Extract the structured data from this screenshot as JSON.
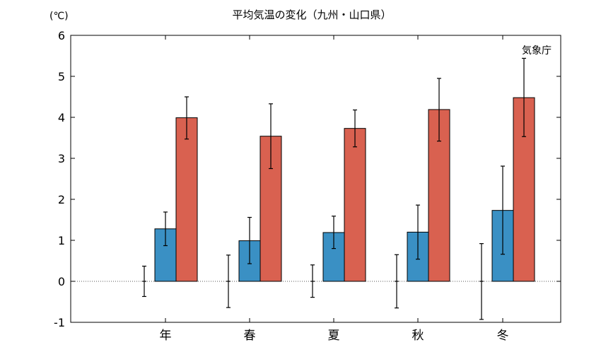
{
  "chart_data": {
    "type": "bar",
    "title": "平均気温の変化（九州・山口県）",
    "unit_label": "(℃)",
    "annotation": "気象庁",
    "categories": [
      "年",
      "春",
      "夏",
      "秋",
      "冬"
    ],
    "ylim": [
      -1,
      6
    ],
    "yticks": [
      "-1",
      "0",
      "1",
      "2",
      "3",
      "4",
      "5",
      "6"
    ],
    "ytick_values": [
      -1,
      0,
      1,
      2,
      3,
      4,
      5,
      6
    ],
    "zero_line": "dotted",
    "grid": false,
    "series": [
      {
        "values": [
          0,
          0,
          0,
          0,
          0
        ],
        "err_low": [
          -0.37,
          -0.64,
          -0.39,
          -0.65,
          -0.93
        ],
        "err_high": [
          0.37,
          0.64,
          0.4,
          0.65,
          0.92
        ],
        "color": "#000000"
      },
      {
        "values": [
          1.28,
          0.99,
          1.19,
          1.2,
          1.73
        ],
        "err_low": [
          0.87,
          0.43,
          0.8,
          0.54,
          0.66
        ],
        "err_high": [
          1.69,
          1.56,
          1.59,
          1.86,
          2.81
        ],
        "color": "#3a90c4"
      },
      {
        "values": [
          3.99,
          3.54,
          3.73,
          4.19,
          4.48
        ],
        "err_low": [
          3.47,
          2.75,
          3.28,
          3.42,
          3.53
        ],
        "err_high": [
          4.5,
          4.33,
          4.18,
          4.95,
          5.44
        ],
        "color": "#d96150"
      }
    ]
  }
}
